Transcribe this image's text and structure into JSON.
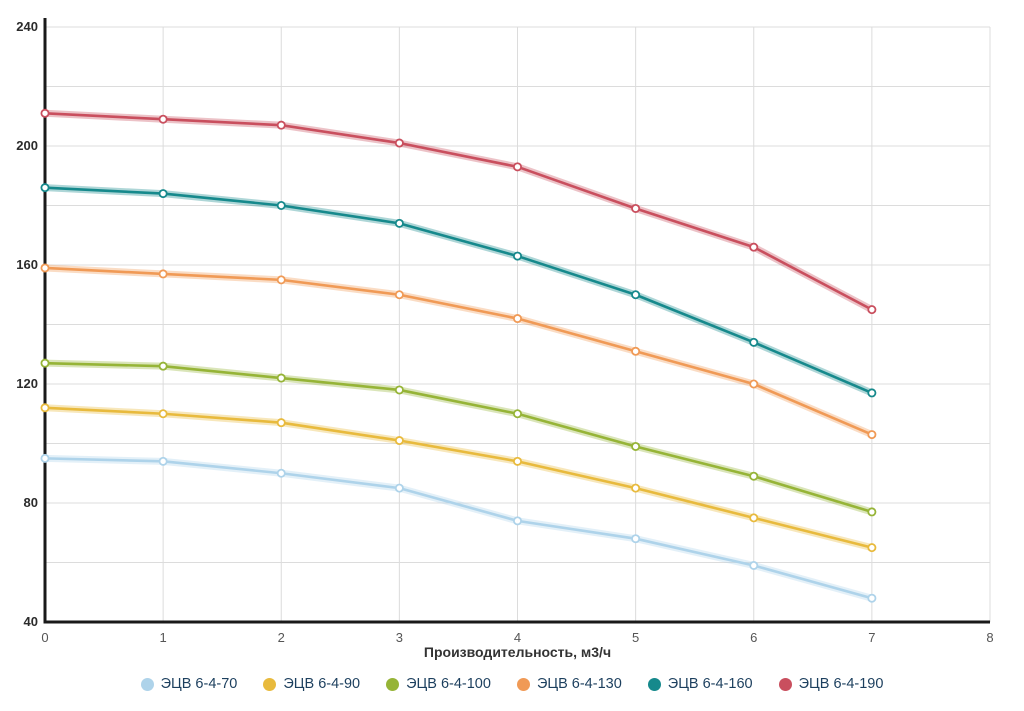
{
  "chart_data": {
    "type": "line",
    "x": [
      0,
      1,
      2,
      3,
      4,
      5,
      6,
      7
    ],
    "xlabel": "Производительность, м3/ч",
    "ylabel": "",
    "xlim": [
      0,
      8
    ],
    "ylim": [
      40,
      240
    ],
    "x_ticks": [
      0,
      1,
      2,
      3,
      4,
      5,
      6,
      7,
      8
    ],
    "y_ticks": [
      40,
      80,
      120,
      160,
      200,
      240
    ],
    "y_minor_step": 20,
    "grid": true,
    "legend_position": "bottom",
    "series": [
      {
        "name": "ЭЦВ 6-4-70",
        "color": "#aed3ea",
        "values": [
          95,
          94,
          90,
          85,
          74,
          68,
          59,
          48
        ]
      },
      {
        "name": "ЭЦВ 6-4-90",
        "color": "#e8ba3d",
        "values": [
          112,
          110,
          107,
          101,
          94,
          85,
          75,
          65
        ]
      },
      {
        "name": "ЭЦВ 6-4-100",
        "color": "#96b437",
        "values": [
          127,
          126,
          122,
          118,
          110,
          99,
          89,
          77
        ]
      },
      {
        "name": "ЭЦВ 6-4-130",
        "color": "#f09a56",
        "values": [
          159,
          157,
          155,
          150,
          142,
          131,
          120,
          103
        ]
      },
      {
        "name": "ЭЦВ 6-4-160",
        "color": "#16898c",
        "values": [
          186,
          184,
          180,
          174,
          163,
          150,
          134,
          117
        ]
      },
      {
        "name": "ЭЦВ 6-4-190",
        "color": "#c94f5e",
        "values": [
          211,
          209,
          207,
          201,
          193,
          179,
          166,
          145
        ]
      }
    ]
  }
}
